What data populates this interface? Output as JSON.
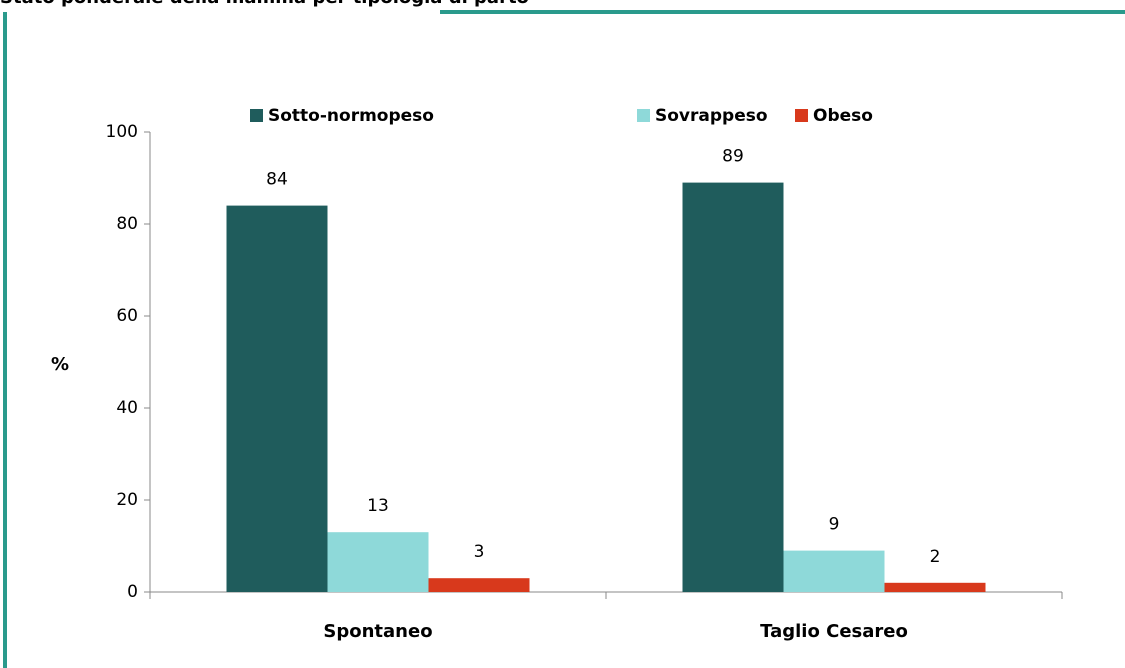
{
  "chart_data": {
    "type": "bar",
    "title": "Stato ponderale della mamma per tipologia di parto",
    "ylabel": "%",
    "categories": [
      "Spontaneo",
      "Taglio Cesareo"
    ],
    "series": [
      {
        "name": "Sotto-normopeso",
        "color": "#1f5c5c",
        "values": [
          84,
          89
        ]
      },
      {
        "name": "Sovrappeso",
        "color": "#8ed9d9",
        "values": [
          13,
          9
        ]
      },
      {
        "name": "Obeso",
        "color": "#d8391c",
        "values": [
          3,
          2
        ]
      }
    ],
    "ylim": [
      0,
      100
    ],
    "yticks": [
      0,
      20,
      40,
      60,
      80,
      100
    ],
    "grid": false,
    "legend": "top"
  }
}
